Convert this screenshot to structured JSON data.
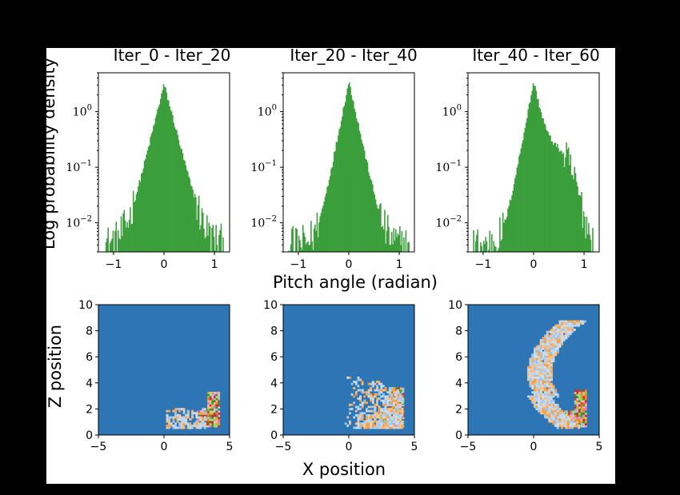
{
  "chart_data": [
    {
      "type": "bar",
      "panel": "hist-1",
      "title": "Iter_0 - Iter_20",
      "ylabel": "Log probability density",
      "xlabel": "Pitch angle (radian)",
      "yscale": "log",
      "xlim": [
        -1.3,
        1.3
      ],
      "ylim": [
        0.003,
        5
      ],
      "xticks": [
        "−1",
        "0",
        "1"
      ],
      "yticks": [
        {
          "value": 1,
          "base": "10",
          "exp": "0"
        },
        {
          "value": 0.1,
          "base": "10",
          "exp": "−1"
        },
        {
          "value": 0.01,
          "base": "10",
          "exp": "−2"
        }
      ],
      "color": "#3a9e3a",
      "range": [
        -1.2,
        1.2
      ],
      "peak": 3.1,
      "decay_left": 8.5,
      "decay_right": 8.0,
      "shoulder": null,
      "floor": 0.004
    },
    {
      "type": "bar",
      "panel": "hist-2",
      "title": "Iter_20 - Iter_40",
      "yscale": "log",
      "xlim": [
        -1.3,
        1.3
      ],
      "ylim": [
        0.003,
        5
      ],
      "xticks": [
        "−1",
        "0",
        "1"
      ],
      "yticks": [
        {
          "value": 1,
          "base": "10",
          "exp": "0"
        },
        {
          "value": 0.1,
          "base": "10",
          "exp": "−1"
        },
        {
          "value": 0.01,
          "base": "10",
          "exp": "−2"
        }
      ],
      "color": "#3a9e3a",
      "range": [
        -1.2,
        1.2
      ],
      "peak": 3.5,
      "decay_left": 10.5,
      "decay_right": 9.5,
      "shoulder": null,
      "floor": 0.004
    },
    {
      "type": "bar",
      "panel": "hist-3",
      "title": "Iter_40 - Iter_60",
      "yscale": "log",
      "xlim": [
        -1.3,
        1.3
      ],
      "ylim": [
        0.003,
        5
      ],
      "xticks": [
        "−1",
        "0",
        "1"
      ],
      "yticks": [
        {
          "value": 1,
          "base": "10",
          "exp": "0"
        },
        {
          "value": 0.1,
          "base": "10",
          "exp": "−1"
        },
        {
          "value": 0.01,
          "base": "10",
          "exp": "−2"
        }
      ],
      "color": "#3a9e3a",
      "range": [
        -1.2,
        1.2
      ],
      "peak": 3.4,
      "decay_left": 11.0,
      "decay_right": 9.0,
      "shoulder": {
        "center": 0.45,
        "width": 0.32,
        "height": 0.18
      },
      "floor": 0.004
    },
    {
      "type": "heatmap",
      "panel": "density-1",
      "ylabel": "Z position",
      "xlabel": "X position",
      "xlim": [
        -5,
        5
      ],
      "ylim": [
        0,
        10
      ],
      "xticks": [
        "−5",
        "0",
        "5"
      ],
      "yticks": [
        "0",
        "2",
        "4",
        "6",
        "8",
        "10"
      ],
      "background": "#2e75b6",
      "block": {
        "x": [
          2.5,
          4.2
        ],
        "z": [
          0.6,
          3.3
        ]
      },
      "spread": 1
    },
    {
      "type": "heatmap",
      "panel": "density-2",
      "xlim": [
        -5,
        5
      ],
      "ylim": [
        0,
        10
      ],
      "xticks": [
        "−5",
        "0",
        "5"
      ],
      "yticks": [
        "0",
        "2",
        "4",
        "6",
        "8",
        "10"
      ],
      "background": "#2e75b6",
      "block": {
        "x": [
          2.3,
          4.2
        ],
        "z": [
          0.6,
          3.5
        ]
      },
      "spread": 2
    },
    {
      "type": "heatmap",
      "panel": "density-3",
      "xlim": [
        -5,
        5
      ],
      "ylim": [
        0,
        10
      ],
      "xticks": [
        "−5",
        "0",
        "5"
      ],
      "yticks": [
        "0",
        "2",
        "4",
        "6",
        "8",
        "10"
      ],
      "background": "#2e75b6",
      "block": {
        "x": [
          2.3,
          4.0
        ],
        "z": [
          0.6,
          3.4
        ]
      },
      "spread": 3
    }
  ]
}
